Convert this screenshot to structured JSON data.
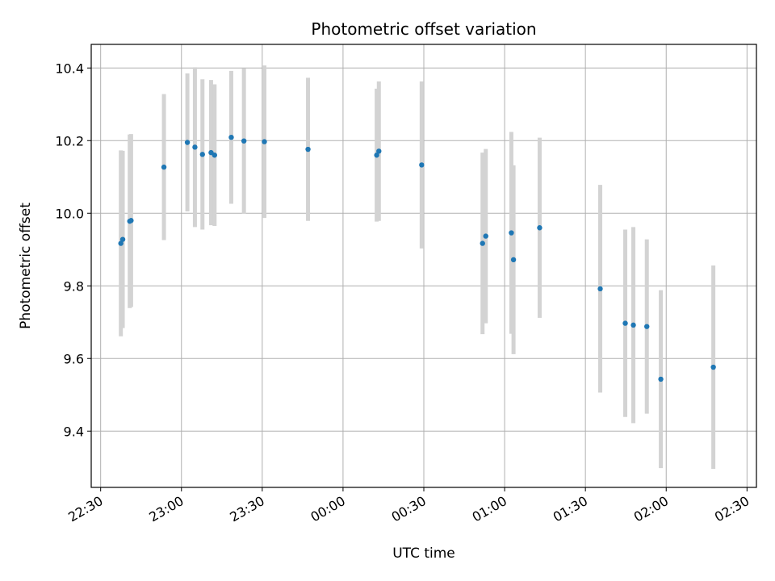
{
  "chart_data": {
    "type": "scatter",
    "title": "Photometric offset variation",
    "xlabel": "UTC time",
    "ylabel": "Photometric offset",
    "x_tick_labels": [
      "22:30",
      "23:00",
      "23:30",
      "00:00",
      "00:30",
      "01:00",
      "01:30",
      "02:00",
      "02:30"
    ],
    "y_tick_labels": [
      "9.4",
      "9.6",
      "9.8",
      "10.0",
      "10.2",
      "10.4"
    ],
    "x_ticks_minutes": [
      0,
      30,
      60,
      90,
      120,
      150,
      180,
      210,
      240
    ],
    "y_ticks": [
      9.4,
      9.6,
      9.8,
      10.0,
      10.2,
      10.4
    ],
    "xlim_minutes": [
      -3.5,
      243.5
    ],
    "ylim": [
      9.245,
      10.465
    ],
    "grid": true,
    "colors": {
      "point": "#1f77b4",
      "errorbar": "#d3d3d3",
      "grid": "#b0b0b0"
    },
    "points": [
      {
        "t": 7.5,
        "y": 9.917,
        "err": 0.256
      },
      {
        "t": 8.2,
        "y": 9.928,
        "err": 0.244
      },
      {
        "t": 10.8,
        "y": 9.978,
        "err": 0.239
      },
      {
        "t": 11.3,
        "y": 9.98,
        "err": 0.238
      },
      {
        "t": 23.5,
        "y": 10.127,
        "err": 0.201
      },
      {
        "t": 32.2,
        "y": 10.195,
        "err": 0.19
      },
      {
        "t": 35.0,
        "y": 10.182,
        "err": 0.22
      },
      {
        "t": 37.8,
        "y": 10.162,
        "err": 0.207
      },
      {
        "t": 41.0,
        "y": 10.167,
        "err": 0.2
      },
      {
        "t": 42.3,
        "y": 10.16,
        "err": 0.195
      },
      {
        "t": 48.5,
        "y": 10.209,
        "err": 0.183
      },
      {
        "t": 53.2,
        "y": 10.199,
        "err": 0.2
      },
      {
        "t": 60.8,
        "y": 10.197,
        "err": 0.21
      },
      {
        "t": 77.0,
        "y": 10.176,
        "err": 0.197
      },
      {
        "t": 102.5,
        "y": 10.16,
        "err": 0.183
      },
      {
        "t": 103.3,
        "y": 10.171,
        "err": 0.192
      },
      {
        "t": 119.2,
        "y": 10.133,
        "err": 0.23
      },
      {
        "t": 141.8,
        "y": 9.917,
        "err": 0.25
      },
      {
        "t": 143.0,
        "y": 9.937,
        "err": 0.24
      },
      {
        "t": 152.5,
        "y": 9.946,
        "err": 0.278
      },
      {
        "t": 153.3,
        "y": 9.872,
        "err": 0.26
      },
      {
        "t": 163.0,
        "y": 9.96,
        "err": 0.248
      },
      {
        "t": 185.5,
        "y": 9.792,
        "err": 0.286
      },
      {
        "t": 194.8,
        "y": 9.697,
        "err": 0.258
      },
      {
        "t": 197.8,
        "y": 9.692,
        "err": 0.27
      },
      {
        "t": 202.8,
        "y": 9.688,
        "err": 0.24
      },
      {
        "t": 208.0,
        "y": 9.543,
        "err": 0.245
      },
      {
        "t": 227.5,
        "y": 9.576,
        "err": 0.28
      }
    ]
  }
}
